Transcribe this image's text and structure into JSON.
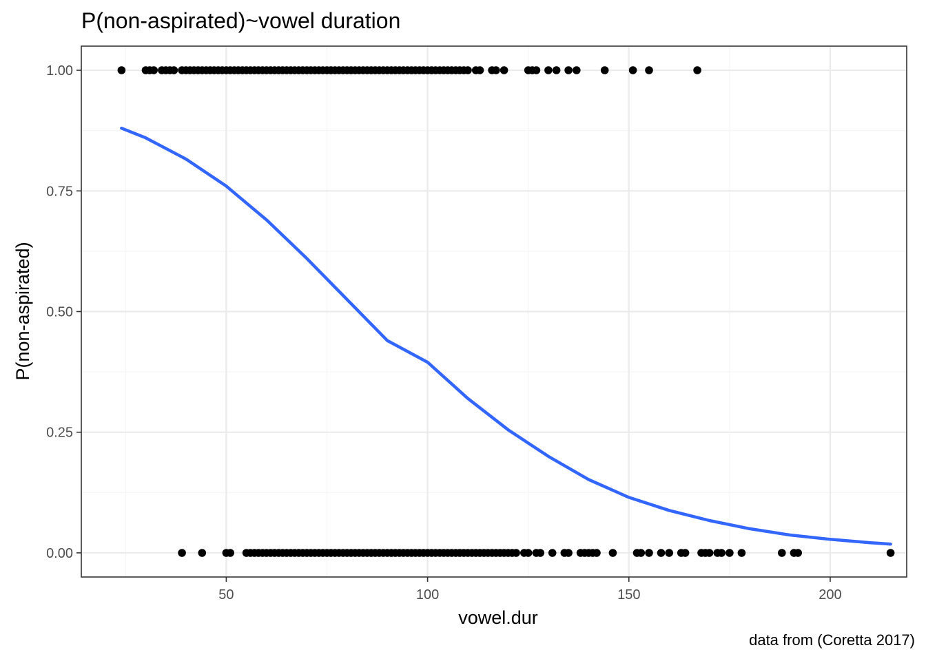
{
  "chart_data": {
    "type": "scatter",
    "title": "P(non-aspirated)~vowel duration",
    "xlabel": "vowel.dur",
    "ylabel": "P(non-aspirated)",
    "caption": "data from (Coretta 2017)",
    "xlim": [
      14,
      219
    ],
    "ylim": [
      -0.05,
      1.05
    ],
    "x_ticks": [
      50,
      100,
      150,
      200
    ],
    "x_tick_labels": [
      "50",
      "100",
      "150",
      "200"
    ],
    "y_ticks": [
      0,
      0.25,
      0.5,
      0.75,
      1
    ],
    "y_tick_labels": [
      "0.00",
      "0.25",
      "0.50",
      "0.75",
      "1.00"
    ],
    "x_minor_ticks": [
      25,
      75,
      125,
      175
    ],
    "y_minor_ticks": [
      0.125,
      0.375,
      0.625,
      0.875
    ],
    "grid": true,
    "legend": "none",
    "colors": {
      "points": "#000000",
      "fit_line": "#3366FF",
      "panel_border": "#333333",
      "grid_major": "#EBEBEB",
      "grid_minor": "#F5F5F5",
      "tick_label": "#4D4D4D"
    },
    "series": [
      {
        "type": "points",
        "y": 1,
        "x": [
          24,
          30,
          31,
          32,
          34,
          35,
          36,
          37,
          39,
          40,
          41,
          42,
          43,
          44,
          45,
          46,
          47,
          48,
          49,
          50,
          51,
          52,
          53,
          54,
          55,
          56,
          57,
          58,
          59,
          60,
          61,
          62,
          63,
          64,
          65,
          66,
          67,
          68,
          69,
          70,
          71,
          72,
          73,
          74,
          75,
          76,
          77,
          78,
          79,
          80,
          81,
          82,
          83,
          84,
          85,
          86,
          87,
          88,
          89,
          90,
          91,
          92,
          93,
          94,
          95,
          96,
          97,
          98,
          99,
          100,
          101,
          102,
          103,
          104,
          105,
          106,
          107,
          108,
          109,
          110,
          112,
          113,
          116,
          117,
          119,
          125,
          126,
          127,
          130,
          132,
          135,
          137,
          144,
          151,
          155,
          167
        ]
      },
      {
        "type": "points",
        "y": 0,
        "x": [
          39,
          44,
          50,
          51,
          55,
          56,
          57,
          58,
          59,
          60,
          61,
          62,
          63,
          64,
          65,
          66,
          67,
          68,
          69,
          70,
          71,
          72,
          73,
          74,
          75,
          76,
          77,
          78,
          79,
          80,
          81,
          82,
          83,
          84,
          85,
          86,
          87,
          88,
          89,
          90,
          91,
          92,
          93,
          94,
          95,
          96,
          97,
          98,
          99,
          100,
          101,
          102,
          103,
          104,
          105,
          106,
          107,
          108,
          109,
          110,
          111,
          112,
          113,
          114,
          115,
          116,
          117,
          118,
          119,
          120,
          121,
          122,
          124,
          125,
          127,
          128,
          131,
          134,
          135,
          138,
          139,
          140,
          141,
          142,
          146,
          152,
          153,
          155,
          158,
          160,
          163,
          164,
          168,
          169,
          170,
          172,
          173,
          175,
          178,
          188,
          191,
          192,
          215
        ]
      },
      {
        "type": "line",
        "name": "",
        "model": "logistic fit",
        "x": [
          24,
          30,
          40,
          50,
          60,
          70,
          80,
          90,
          100,
          110,
          120,
          130,
          140,
          150,
          160,
          170,
          180,
          190,
          200,
          210,
          215
        ],
        "y": [
          0.88,
          0.86,
          0.816,
          0.76,
          0.69,
          0.61,
          0.525,
          0.44,
          0.395,
          0.32,
          0.255,
          0.2,
          0.152,
          0.115,
          0.088,
          0.067,
          0.05,
          0.037,
          0.028,
          0.021,
          0.018
        ]
      }
    ]
  }
}
